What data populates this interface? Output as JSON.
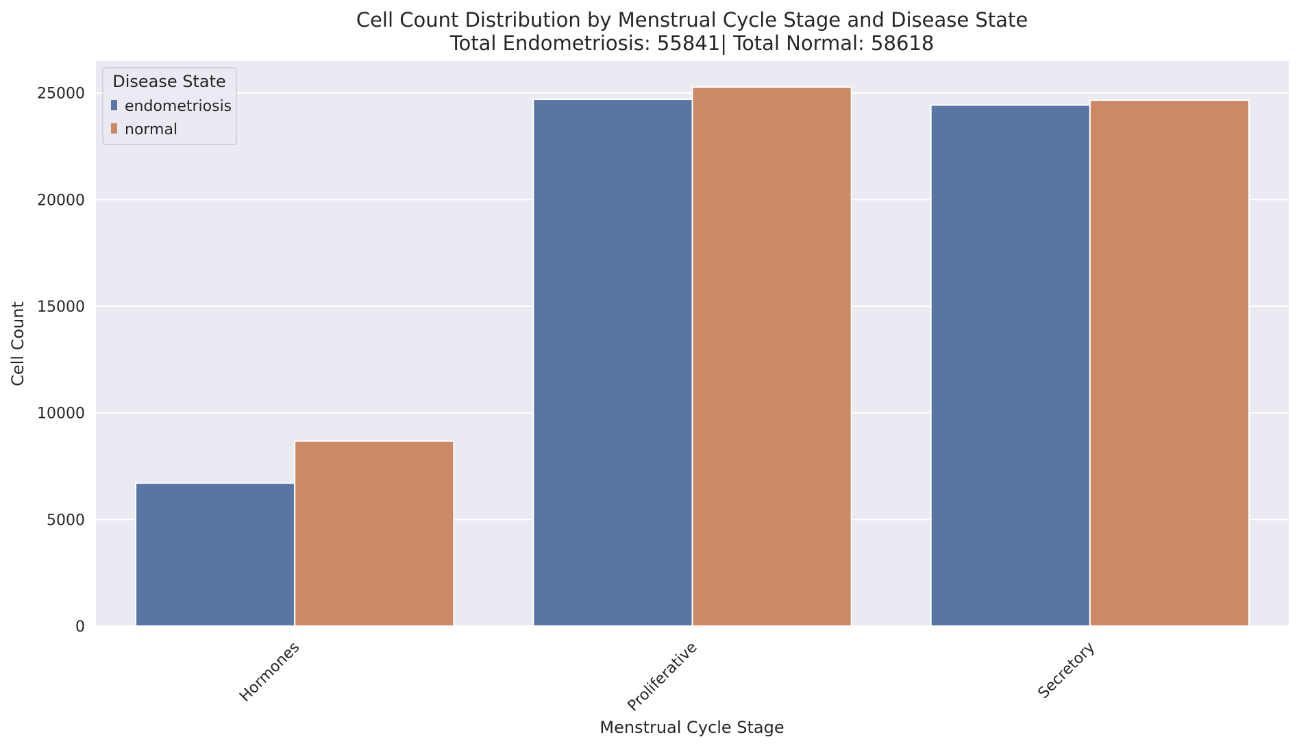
{
  "chart_data": {
    "type": "bar",
    "title": "Cell Count Distribution by Menstrual Cycle Stage and Disease State",
    "subtitle": "Total Endometriosis: 55841| Total Normal: 58618",
    "xlabel": "Menstrual Cycle Stage",
    "ylabel": "Cell Count",
    "categories": [
      "Hormones",
      "Proliferative",
      "Secretory"
    ],
    "series": [
      {
        "name": "endometriosis",
        "color": "#5875a4",
        "values": [
          6700,
          24700,
          24430
        ]
      },
      {
        "name": "normal",
        "color": "#cc8963",
        "values": [
          8680,
          25280,
          24660
        ]
      }
    ],
    "ylim": [
      0,
      26500
    ],
    "yticks": [
      0,
      5000,
      10000,
      15000,
      20000,
      25000
    ],
    "ytick_labels": [
      "0",
      "5000",
      "10000",
      "15000",
      "20000",
      "25000"
    ],
    "grid": true,
    "legend": {
      "title": "Disease State",
      "position": "top-left"
    },
    "background_color": "#eaeaf2",
    "grid_color": "#ffffff"
  }
}
